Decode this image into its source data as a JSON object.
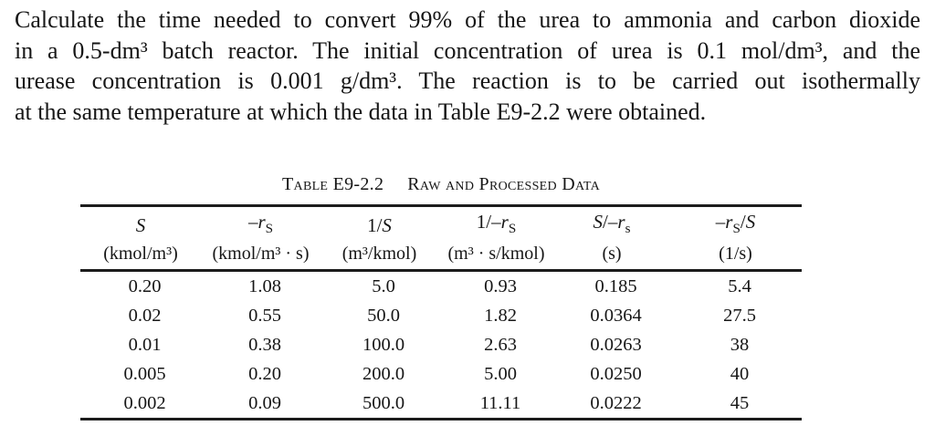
{
  "page": {
    "background": "#ffffff",
    "text_color": "#161616",
    "rule_color": "#1c1c1c"
  },
  "problem": {
    "lines": [
      "Calculate the time needed to convert 99% of the urea to ammonia and carbon dioxide",
      "in a 0.5-dm³ batch reactor. The initial concentration of urea is 0.1 mol/dm³, and the",
      "urease concentration is 0.001 g/dm³. The reaction is to be carried out isothermally",
      "at the same temperature at which the data in Table E9-2.2 were obtained."
    ]
  },
  "table": {
    "title": {
      "label": "Table E9-2.2",
      "caption": "Raw and Processed Data"
    },
    "columns": [
      {
        "name": "S",
        "symbol": [
          {
            "t": "S",
            "i": true
          }
        ],
        "unit": "(kmol/m³)"
      },
      {
        "name": "-rS",
        "symbol": [
          {
            "t": "–"
          },
          {
            "t": "r",
            "i": true
          },
          {
            "t": "S",
            "sub": true
          }
        ],
        "unit": "(kmol/m³ · s)"
      },
      {
        "name": "1/S",
        "symbol": [
          {
            "t": "1/"
          },
          {
            "t": "S",
            "i": true
          }
        ],
        "unit": "(m³/kmol)"
      },
      {
        "name": "1/-rS",
        "symbol": [
          {
            "t": "1/–"
          },
          {
            "t": "r",
            "i": true
          },
          {
            "t": "S",
            "sub": true
          }
        ],
        "unit": "(m³ · s/kmol)"
      },
      {
        "name": "S/-rs",
        "symbol": [
          {
            "t": "S",
            "i": true
          },
          {
            "t": "/–"
          },
          {
            "t": "r",
            "i": true
          },
          {
            "t": "s",
            "sub": true
          }
        ],
        "unit": "(s)"
      },
      {
        "name": "-rS/S",
        "symbol": [
          {
            "t": "–"
          },
          {
            "t": "r",
            "i": true
          },
          {
            "t": "S",
            "sub": true
          },
          {
            "t": "/"
          },
          {
            "t": "S",
            "i": true
          }
        ],
        "unit": "(1/s)"
      }
    ],
    "rows": [
      [
        "0.20",
        "1.08",
        "5.0",
        "0.93",
        "0.185",
        "5.4"
      ],
      [
        "0.02",
        "0.55",
        "50.0",
        "1.82",
        "0.0364",
        "27.5"
      ],
      [
        "0.01",
        "0.38",
        "100.0",
        "2.63",
        "0.0263",
        "38"
      ],
      [
        "0.005",
        "0.20",
        "200.0",
        "5.00",
        "0.0250",
        "40"
      ],
      [
        "0.002",
        "0.09",
        "500.0",
        "11.11",
        "0.0222",
        "45"
      ]
    ]
  }
}
